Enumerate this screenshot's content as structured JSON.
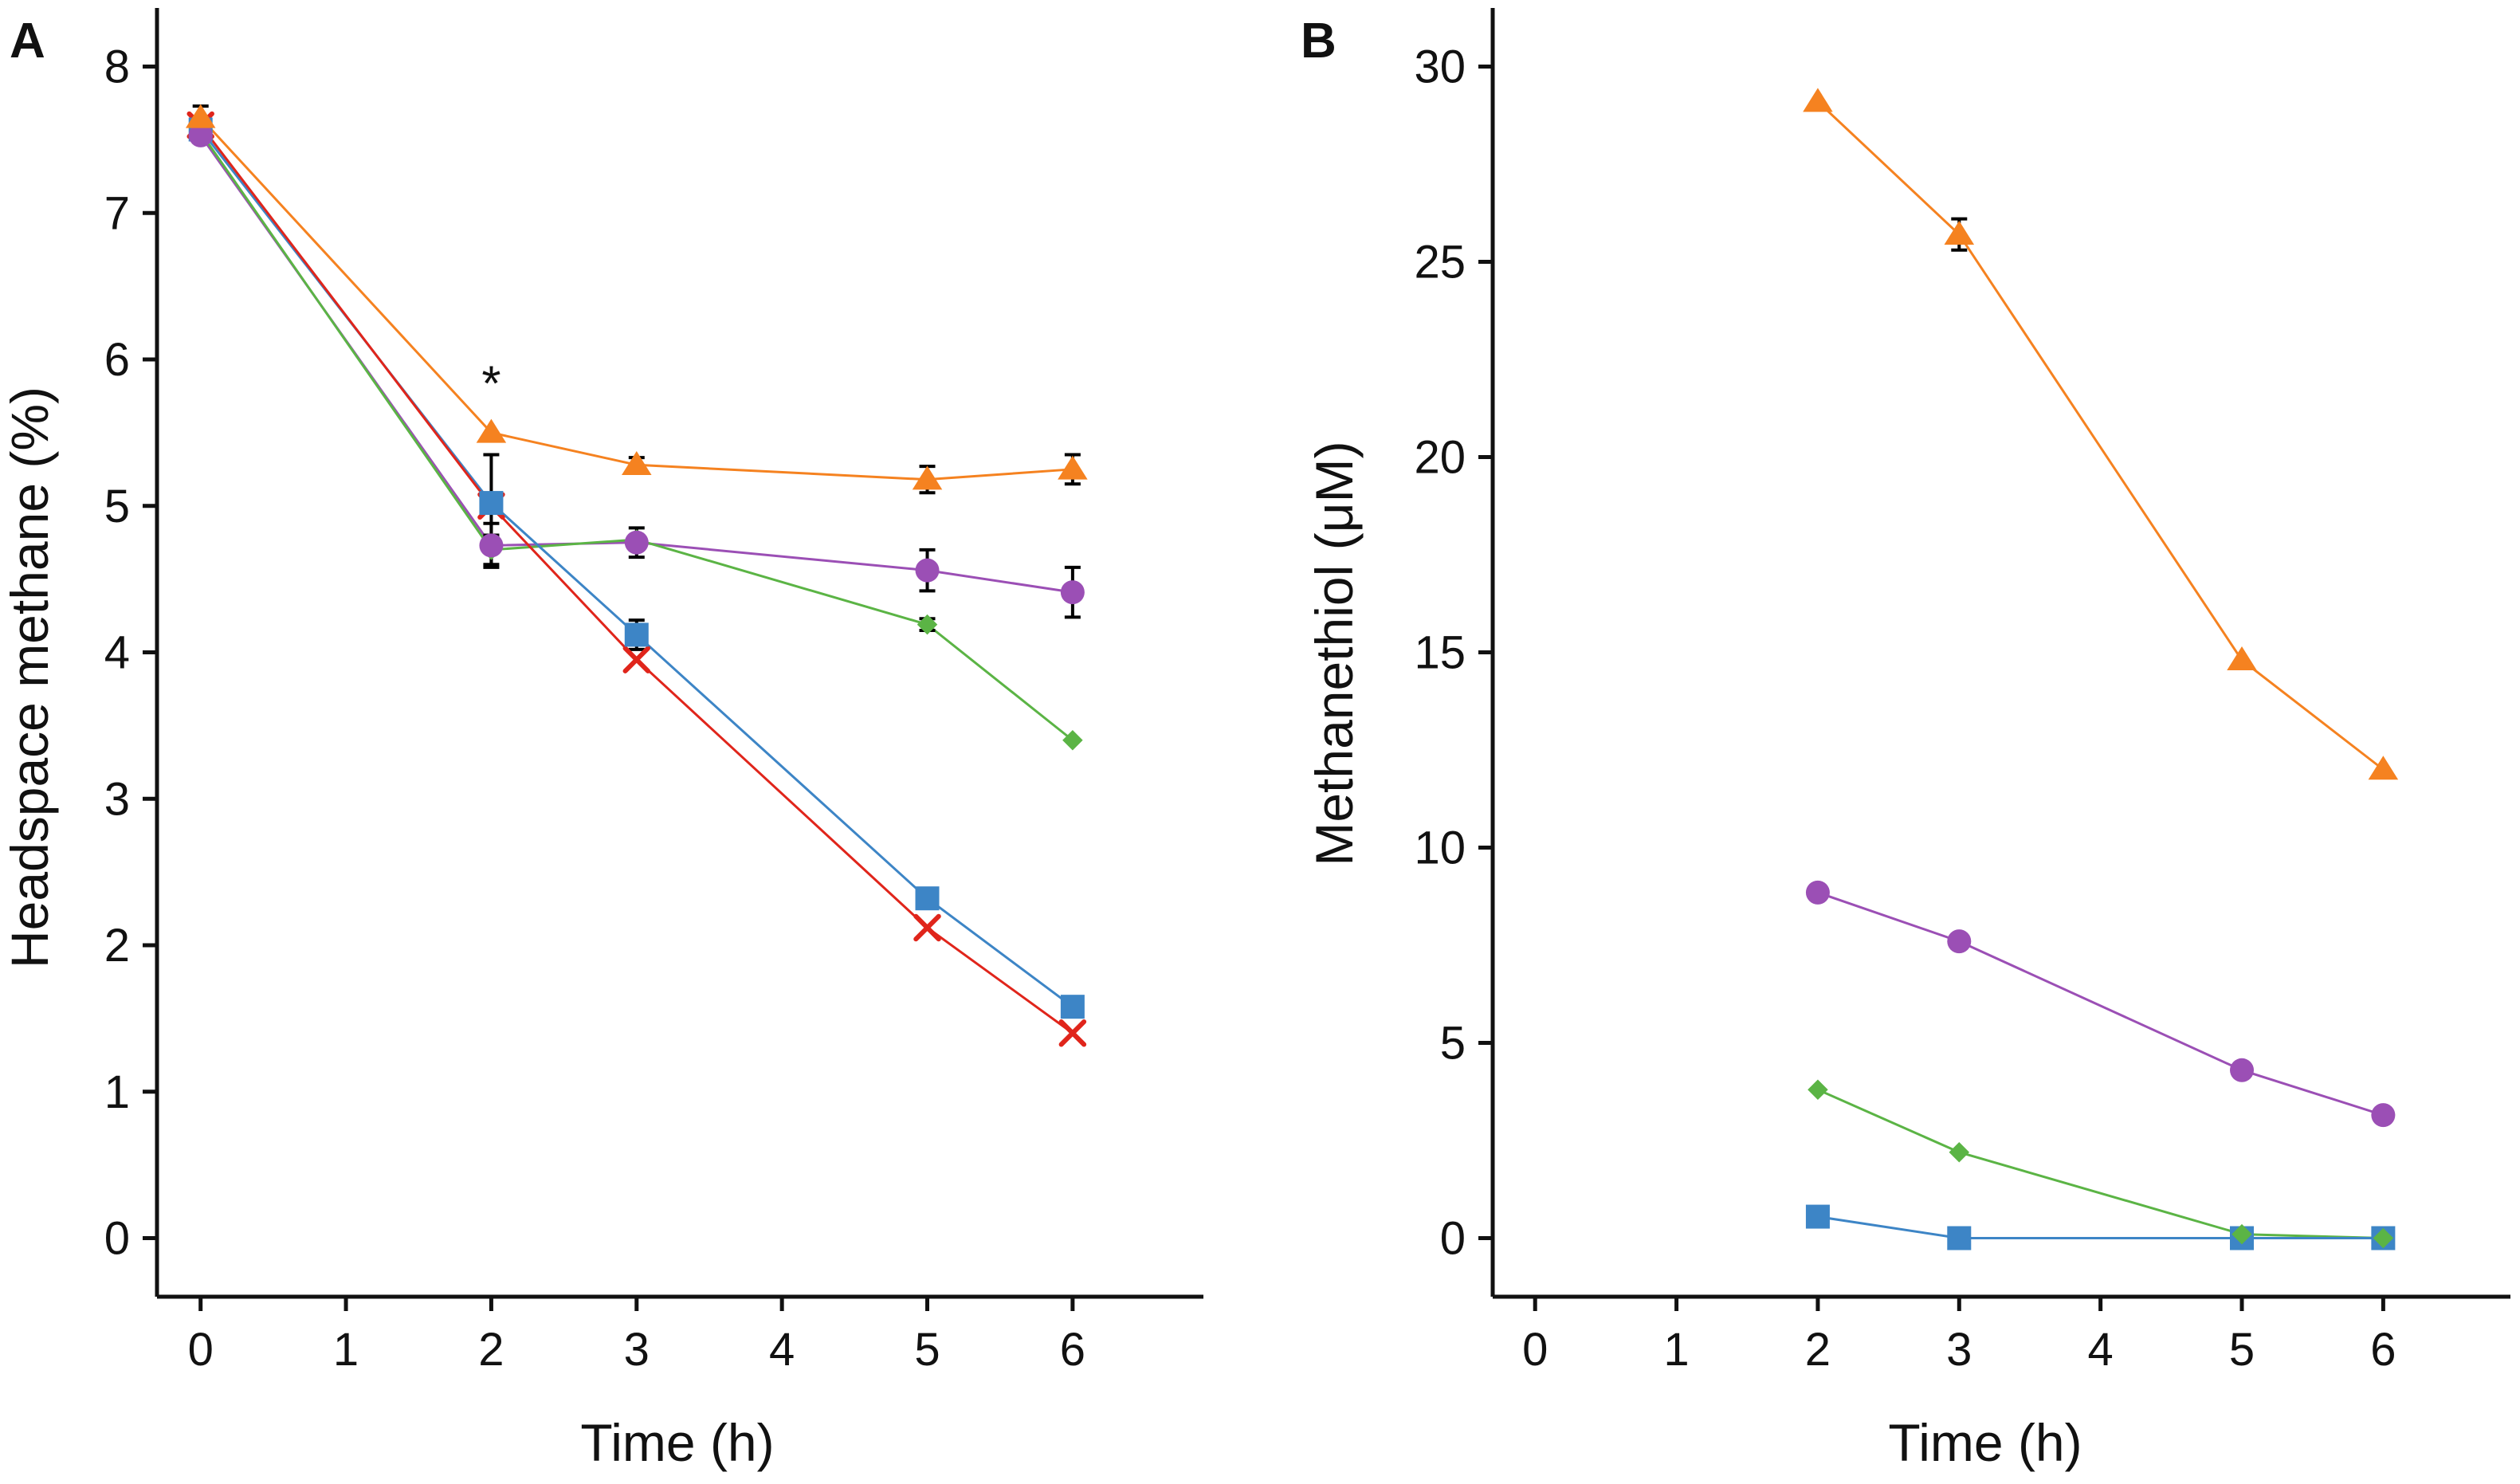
{
  "colors": {
    "orange": "#F58220",
    "purple": "#9B4FB5",
    "green": "#5BB445",
    "blue": "#3D85C6",
    "red": "#E0251B",
    "axis": "#111111"
  },
  "chart_data": [
    {
      "panel": "A",
      "type": "line",
      "xlabel": "Time (h)",
      "ylabel": "Headspace methane (%)",
      "xlim": [
        -0.3,
        6.9
      ],
      "ylim": [
        -0.4,
        8.4
      ],
      "xticks": [
        "0",
        "1",
        "2",
        "3",
        "4",
        "5",
        "6"
      ],
      "yticks": [
        "0",
        "1",
        "2",
        "3",
        "4",
        "5",
        "6",
        "7",
        "8"
      ],
      "annotations": [
        {
          "text": "*",
          "x": 2,
          "y": 5.85
        }
      ],
      "series": [
        {
          "name": "orange-triangle",
          "color": "orange",
          "marker": "triangle",
          "x": [
            0,
            2,
            3,
            5,
            6
          ],
          "y": [
            7.65,
            5.5,
            5.28,
            5.18,
            5.25
          ],
          "err": [
            0.08,
            0.0,
            0.05,
            0.09,
            0.1
          ]
        },
        {
          "name": "purple-circle",
          "color": "purple",
          "marker": "circle",
          "x": [
            0,
            2,
            3,
            5,
            6
          ],
          "y": [
            7.53,
            4.73,
            4.75,
            4.56,
            4.41
          ],
          "err": [
            0.05,
            0.15,
            0.1,
            0.14,
            0.17
          ]
        },
        {
          "name": "green-diamond",
          "color": "green",
          "marker": "diamond",
          "x": [
            0,
            2,
            3,
            5,
            6
          ],
          "y": [
            7.55,
            4.7,
            4.77,
            4.19,
            3.4
          ],
          "err": [
            0.0,
            0.1,
            0.0,
            0.04,
            0.0
          ]
        },
        {
          "name": "blue-square",
          "color": "blue",
          "marker": "square",
          "x": [
            0,
            2,
            3,
            5,
            6
          ],
          "y": [
            7.57,
            5.02,
            4.12,
            2.32,
            1.58
          ],
          "err": [
            0.0,
            0.33,
            0.1,
            0.0,
            0.0
          ]
        },
        {
          "name": "red-cross",
          "color": "red",
          "marker": "cross",
          "x": [
            0,
            2,
            3,
            5,
            6
          ],
          "y": [
            7.6,
            5.0,
            3.95,
            2.12,
            1.4
          ],
          "err": [
            0.0,
            0.0,
            0.0,
            0.0,
            0.0
          ]
        }
      ]
    },
    {
      "panel": "B",
      "type": "line",
      "xlabel": "Time (h)",
      "ylabel": "Methanethiol (μM)",
      "xlim": [
        -0.3,
        6.9
      ],
      "ylim": [
        -1.5,
        31.5
      ],
      "xticks": [
        "0",
        "1",
        "2",
        "3",
        "4",
        "5",
        "6"
      ],
      "yticks": [
        "0",
        "5",
        "10",
        "15",
        "20",
        "25",
        "30"
      ],
      "annotations": [],
      "series": [
        {
          "name": "orange-triangle",
          "color": "orange",
          "marker": "triangle",
          "x": [
            2,
            3,
            5,
            6
          ],
          "y": [
            29.1,
            25.7,
            14.8,
            12.0
          ],
          "err": [
            0.0,
            0.4,
            0.0,
            0.0
          ]
        },
        {
          "name": "purple-circle",
          "color": "purple",
          "marker": "circle",
          "x": [
            2,
            3,
            5,
            6
          ],
          "y": [
            8.85,
            7.6,
            4.3,
            3.15
          ],
          "err": [
            0.0,
            0.0,
            0.0,
            0.0
          ]
        },
        {
          "name": "green-diamond",
          "color": "green",
          "marker": "diamond",
          "x": [
            2,
            3,
            5,
            6
          ],
          "y": [
            3.8,
            2.2,
            0.1,
            0.0
          ],
          "err": [
            0.0,
            0.0,
            0.0,
            0.0
          ]
        },
        {
          "name": "blue-square",
          "color": "blue",
          "marker": "square",
          "x": [
            2,
            3,
            5,
            6
          ],
          "y": [
            0.55,
            0.0,
            0.0,
            0.0
          ],
          "err": [
            0.0,
            0.0,
            0.0,
            0.0
          ]
        }
      ]
    }
  ]
}
